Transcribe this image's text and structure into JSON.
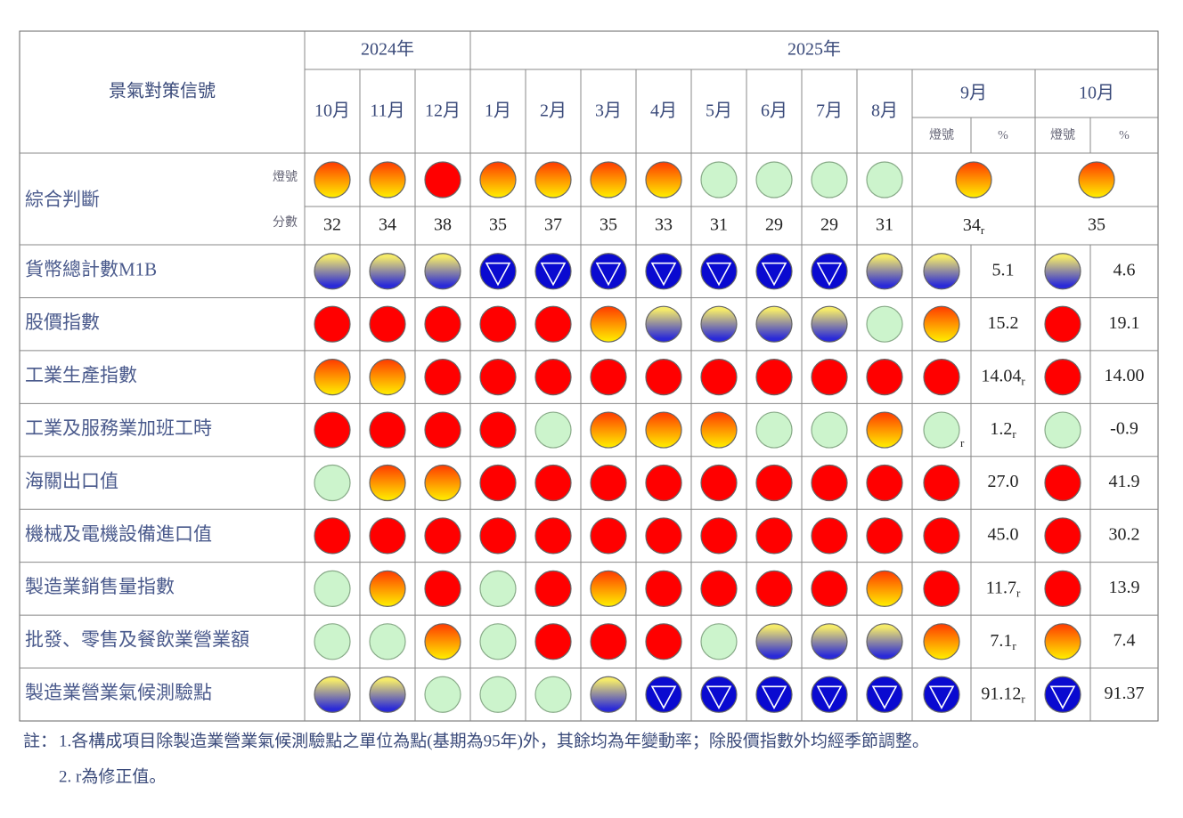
{
  "header": {
    "corner": "景氣對策信號",
    "years": [
      "2024年",
      "2025年"
    ],
    "months": [
      "10月",
      "11月",
      "12月",
      "1月",
      "2月",
      "3月",
      "4月",
      "5月",
      "6月",
      "7月",
      "8月"
    ],
    "current_months": [
      "9月",
      "10月"
    ],
    "sub_headers": [
      "燈號",
      "%"
    ]
  },
  "composite": {
    "label": "綜合判斷",
    "signal_label": "燈號",
    "score_label": "分數",
    "signals": [
      "yellow-red",
      "yellow-red",
      "red",
      "yellow-red",
      "yellow-red",
      "yellow-red",
      "yellow-red",
      "green",
      "green",
      "green",
      "green",
      "yellow-red",
      "yellow-red"
    ],
    "scores": [
      "32",
      "34",
      "38",
      "35",
      "37",
      "35",
      "33",
      "31",
      "29",
      "29",
      "31",
      {
        "text": "34",
        "sub": "r"
      },
      "35"
    ]
  },
  "rows": [
    {
      "label": "貨幣總計數M1B",
      "signals": [
        "yellow-blue",
        "yellow-blue",
        "yellow-blue",
        "blue",
        "blue",
        "blue",
        "blue",
        "blue",
        "blue",
        "blue",
        "yellow-blue",
        "yellow-blue",
        "yellow-blue"
      ],
      "percent": [
        "5.1",
        "4.6"
      ]
    },
    {
      "label": "股價指數",
      "signals": [
        "red",
        "red",
        "red",
        "red",
        "red",
        "yellow-red",
        "yellow-blue",
        "yellow-blue",
        "yellow-blue",
        "yellow-blue",
        "green",
        "yellow-red",
        "red"
      ],
      "percent": [
        "15.2",
        "19.1"
      ]
    },
    {
      "label": "工業生產指數",
      "signals": [
        "yellow-red",
        "yellow-red",
        "red",
        "red",
        "red",
        "red",
        "red",
        "red",
        "red",
        "red",
        "red",
        "red",
        "red"
      ],
      "percent": [
        {
          "text": "14.04",
          "sub": "r"
        },
        "14.00"
      ]
    },
    {
      "label": "工業及服務業加班工時",
      "signals": [
        "red",
        "red",
        "red",
        "red",
        "green",
        "yellow-red",
        "yellow-red",
        "yellow-red",
        "green",
        "green",
        "yellow-red",
        {
          "color": "green",
          "sub": "r"
        },
        "green"
      ],
      "percent": [
        {
          "text": "1.2",
          "sub": "r"
        },
        "-0.9"
      ]
    },
    {
      "label": "海關出口值",
      "signals": [
        "green",
        "yellow-red",
        "yellow-red",
        "red",
        "red",
        "red",
        "red",
        "red",
        "red",
        "red",
        "red",
        "red",
        "red"
      ],
      "percent": [
        "27.0",
        "41.9"
      ]
    },
    {
      "label": "機械及電機設備進口值",
      "signals": [
        "red",
        "red",
        "red",
        "red",
        "red",
        "red",
        "red",
        "red",
        "red",
        "red",
        "red",
        "red",
        "red"
      ],
      "percent": [
        "45.0",
        "30.2"
      ]
    },
    {
      "label": "製造業銷售量指數",
      "signals": [
        "green",
        "yellow-red",
        "red",
        "green",
        "red",
        "yellow-red",
        "red",
        "red",
        "red",
        "red",
        "yellow-red",
        "red",
        "red"
      ],
      "percent": [
        {
          "text": "11.7",
          "sub": "r"
        },
        "13.9"
      ]
    },
    {
      "label": "批發、零售及餐飲業營業額",
      "signals": [
        "green",
        "green",
        "yellow-red",
        "green",
        "red",
        "red",
        "red",
        "green",
        "yellow-blue",
        "yellow-blue",
        "yellow-blue",
        "yellow-red",
        "yellow-red"
      ],
      "percent": [
        {
          "text": "7.1",
          "sub": "r"
        },
        "7.4"
      ]
    },
    {
      "label": "製造業營業氣候測驗點",
      "signals": [
        "yellow-blue",
        "yellow-blue",
        "green",
        "green",
        "green",
        "yellow-blue",
        "blue",
        "blue",
        "blue",
        "blue",
        "blue",
        "blue",
        "blue"
      ],
      "percent": [
        {
          "text": "91.12",
          "sub": "r"
        },
        "91.37"
      ]
    }
  ],
  "notes": {
    "prefix": "註：",
    "items": [
      "1.各構成項目除製造業營業氣候測驗點之單位為點(基期為95年)外，其餘均為年變動率；除股價指數外均經季節調整。",
      "2. r為修正值。"
    ]
  }
}
